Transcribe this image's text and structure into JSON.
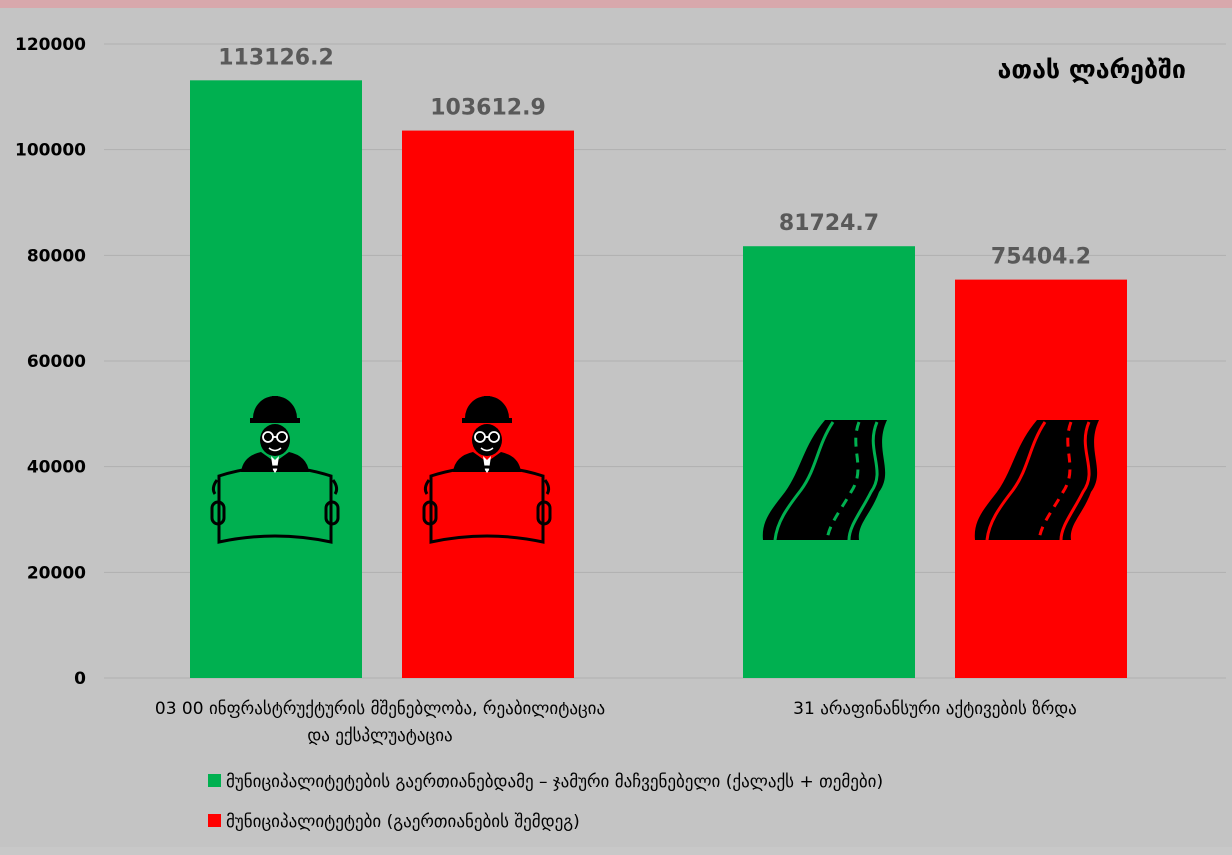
{
  "chart_data": {
    "type": "bar",
    "unit_label": "ათას ლარებში",
    "categories": [
      [
        "03 00 ინფრასტრუქტურის მშენებლობა, რეაბილიტაცია",
        "და ექსპლუატაცია"
      ],
      [
        "31 არაფინანსური აქტივების ზრდა"
      ]
    ],
    "series": [
      {
        "name": "მუნიციპალიტეტების გაერთიანებდამე  – ჯამური მაჩვენებელი (ქალაქს + თემები)",
        "color": "#00b050",
        "values": [
          113126.2,
          81724.7
        ],
        "labels": [
          "113126.2",
          "81724.7"
        ]
      },
      {
        "name": "მუნიციპალიტეტები (გაერთიანების შემდეგ)",
        "color": "#ff0000",
        "values": [
          103612.9,
          75404.2
        ],
        "labels": [
          "103612.9",
          "75404.2"
        ]
      }
    ],
    "ylim": [
      0,
      120000
    ],
    "yticks": [
      "0",
      "20000",
      "40000",
      "60000",
      "80000",
      "100000",
      "120000"
    ],
    "grid": true,
    "legend_position": "bottom-left",
    "icons": [
      "engineer-blueprint-icon",
      "road-icon"
    ]
  }
}
